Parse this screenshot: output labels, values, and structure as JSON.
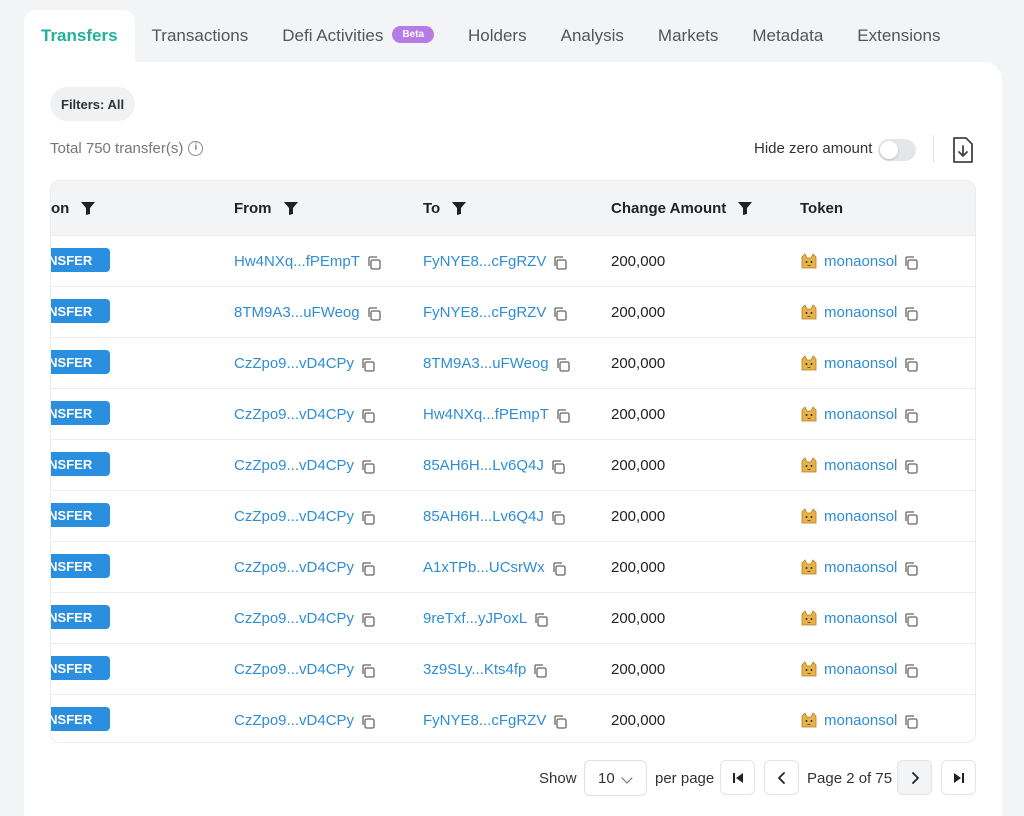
{
  "tabs": [
    {
      "label": "Transfers",
      "active": true
    },
    {
      "label": "Transactions"
    },
    {
      "label": "Defi Activities",
      "badge": "Beta"
    },
    {
      "label": "Holders"
    },
    {
      "label": "Analysis"
    },
    {
      "label": "Markets"
    },
    {
      "label": "Metadata"
    },
    {
      "label": "Extensions"
    }
  ],
  "filters_label": "Filters: All",
  "total_label": "Total 750 transfer(s)",
  "hide_zero_label": "Hide zero amount",
  "hide_zero_enabled": false,
  "columns": [
    "on",
    "From",
    "To",
    "Change Amount",
    "Token"
  ],
  "rows": [
    {
      "action": "ANSFER",
      "from": "Hw4NXq...fPEmpT",
      "to": "FyNYE8...cFgRZV",
      "amount": "200,000",
      "token": "monaonsol"
    },
    {
      "action": "ANSFER",
      "from": "8TM9A3...uFWeog",
      "to": "FyNYE8...cFgRZV",
      "amount": "200,000",
      "token": "monaonsol"
    },
    {
      "action": "ANSFER",
      "from": "CzZpo9...vD4CPy",
      "to": "8TM9A3...uFWeog",
      "amount": "200,000",
      "token": "monaonsol"
    },
    {
      "action": "ANSFER",
      "from": "CzZpo9...vD4CPy",
      "to": "Hw4NXq...fPEmpT",
      "amount": "200,000",
      "token": "monaonsol"
    },
    {
      "action": "ANSFER",
      "from": "CzZpo9...vD4CPy",
      "to": "85AH6H...Lv6Q4J",
      "amount": "200,000",
      "token": "monaonsol"
    },
    {
      "action": "ANSFER",
      "from": "CzZpo9...vD4CPy",
      "to": "85AH6H...Lv6Q4J",
      "amount": "200,000",
      "token": "monaonsol"
    },
    {
      "action": "ANSFER",
      "from": "CzZpo9...vD4CPy",
      "to": "A1xTPb...UCsrWx",
      "amount": "200,000",
      "token": "monaonsol"
    },
    {
      "action": "ANSFER",
      "from": "CzZpo9...vD4CPy",
      "to": "9reTxf...yJPoxL",
      "amount": "200,000",
      "token": "monaonsol"
    },
    {
      "action": "ANSFER",
      "from": "CzZpo9...vD4CPy",
      "to": "3z9SLy...Kts4fp",
      "amount": "200,000",
      "token": "monaonsol"
    },
    {
      "action": "ANSFER",
      "from": "CzZpo9...vD4CPy",
      "to": "FyNYE8...cFgRZV",
      "amount": "200,000",
      "token": "monaonsol"
    }
  ],
  "pagination": {
    "show_label": "Show",
    "per_page_value": "10",
    "per_page_label": "per page",
    "page_label": "Page 2 of 75"
  },
  "icons": {
    "filter": "funnel-icon",
    "copy": "copy-icon",
    "info": "info-icon",
    "download": "download-icon",
    "token": "cat-face-icon",
    "first": "first-page-icon",
    "prev": "chevron-left-icon",
    "next": "chevron-right-icon",
    "last": "last-page-icon"
  },
  "colors": {
    "accent": "#22b09a",
    "link": "#2f8dd3",
    "badge": "#2b8fe0",
    "beta": "#b57be6"
  }
}
